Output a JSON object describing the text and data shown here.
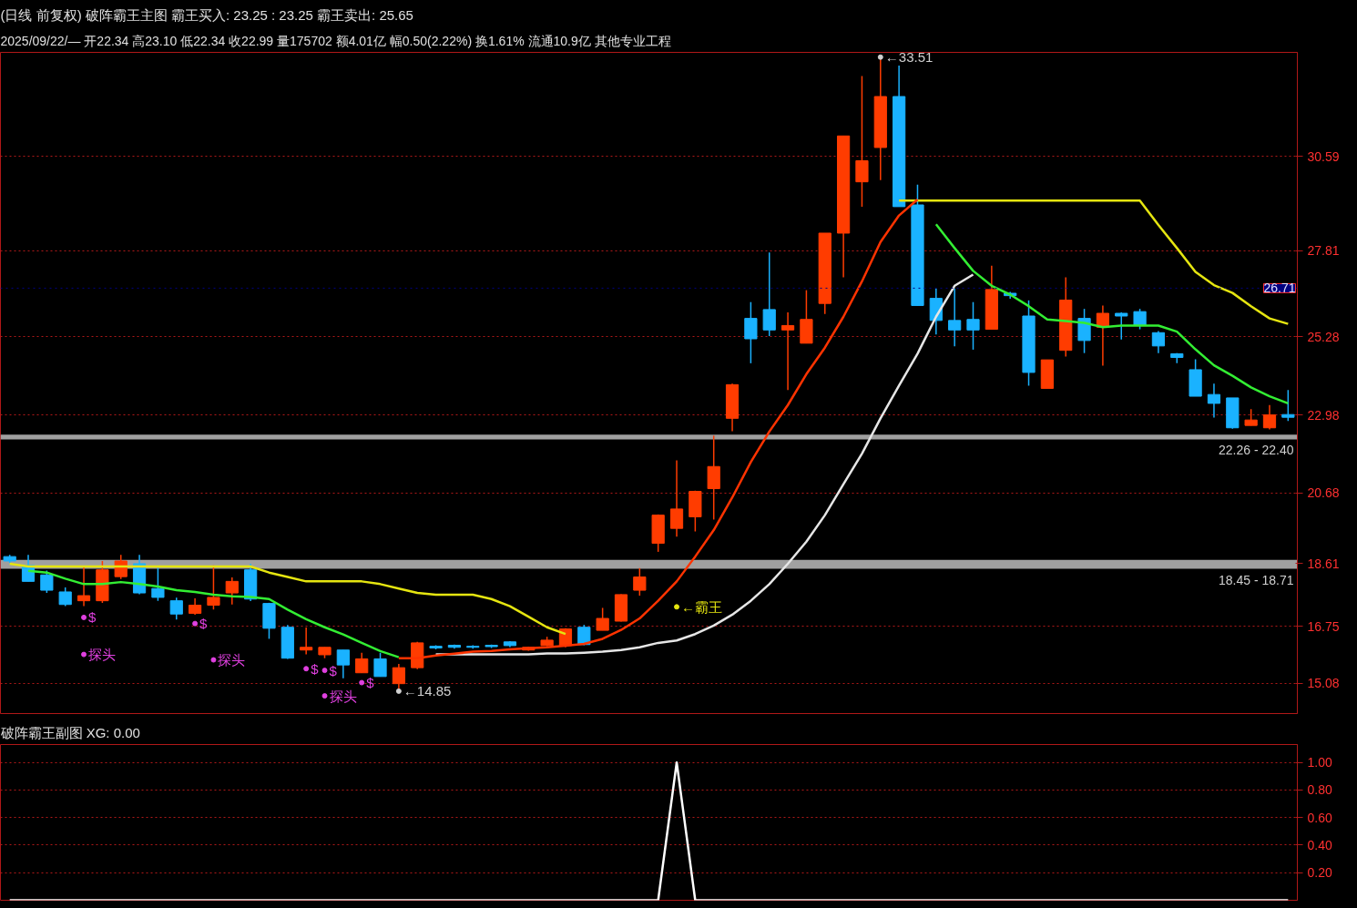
{
  "chart_data": [
    {
      "type": "candlestick",
      "title": "(日线 前复权)",
      "subtitle": "破阵霸王主图  霸王买入: 23.25 : 23.25  霸王卖出: 25.65",
      "categories": [
        null,
        null,
        null,
        null,
        null,
        null,
        null,
        null,
        null,
        null,
        null,
        null,
        null,
        null,
        null,
        null,
        null,
        null,
        null,
        null,
        null,
        null,
        null,
        null,
        null,
        null,
        null,
        null,
        null,
        null,
        null,
        null,
        null,
        null,
        null,
        null,
        null,
        null,
        null,
        null,
        null,
        null,
        null,
        null,
        null,
        null,
        null,
        null,
        null,
        null,
        null,
        null,
        null,
        null,
        null,
        null,
        null,
        null,
        null,
        null,
        null,
        null,
        null,
        null,
        null,
        null,
        null,
        null,
        null,
        null
      ],
      "ohlc": [
        [
          18.81,
          18.86,
          18.62,
          18.68
        ],
        [
          18.55,
          18.86,
          18.08,
          18.08
        ],
        [
          18.27,
          18.4,
          17.74,
          17.82
        ],
        [
          17.77,
          17.9,
          17.35,
          17.4
        ],
        [
          17.51,
          18.53,
          17.35,
          17.66
        ],
        [
          17.51,
          18.68,
          17.45,
          18.42
        ],
        [
          18.22,
          18.86,
          18.15,
          18.68
        ],
        [
          18.6,
          18.86,
          17.7,
          17.74
        ],
        [
          17.87,
          18.47,
          17.51,
          17.61
        ],
        [
          17.51,
          17.6,
          16.96,
          17.12
        ],
        [
          17.14,
          17.58,
          17.1,
          17.38
        ],
        [
          17.38,
          18.55,
          17.25,
          17.61
        ],
        [
          17.74,
          18.2,
          17.4,
          18.08
        ],
        [
          18.42,
          18.6,
          17.5,
          17.56
        ],
        [
          17.43,
          17.45,
          16.39,
          16.7
        ],
        [
          16.73,
          16.8,
          15.8,
          15.82
        ],
        [
          16.06,
          16.72,
          15.93,
          16.14
        ],
        [
          15.92,
          16.14,
          15.82,
          16.14
        ],
        [
          16.06,
          16.06,
          15.23,
          15.62
        ],
        [
          15.39,
          15.98,
          15.39,
          15.8
        ],
        [
          15.8,
          15.98,
          15.28,
          15.28
        ],
        [
          15.07,
          15.65,
          14.85,
          15.54
        ],
        [
          15.54,
          16.3,
          15.5,
          16.27
        ],
        [
          16.17,
          16.2,
          16.08,
          16.12
        ],
        [
          16.2,
          16.22,
          16.1,
          16.14
        ],
        [
          16.17,
          16.2,
          16.1,
          16.14
        ],
        [
          16.2,
          16.22,
          16.12,
          16.16
        ],
        [
          16.3,
          16.32,
          16.15,
          16.19
        ],
        [
          16.06,
          16.16,
          16.04,
          16.14
        ],
        [
          16.19,
          16.45,
          16.17,
          16.35
        ],
        [
          16.19,
          16.7,
          16.14,
          16.68
        ],
        [
          16.73,
          16.8,
          16.2,
          16.22
        ],
        [
          16.64,
          17.3,
          16.64,
          16.99
        ],
        [
          16.91,
          17.7,
          16.9,
          17.69
        ],
        [
          17.82,
          18.47,
          17.66,
          18.21
        ],
        [
          19.2,
          20.05,
          18.95,
          20.03
        ],
        [
          19.64,
          21.64,
          19.4,
          20.21
        ],
        [
          19.98,
          20.75,
          19.55,
          20.73
        ],
        [
          20.81,
          22.37,
          19.9,
          21.46
        ],
        [
          22.88,
          23.9,
          22.5,
          23.87
        ],
        [
          25.82,
          26.3,
          24.5,
          25.22
        ],
        [
          26.08,
          27.76,
          25.3,
          25.48
        ],
        [
          25.48,
          26.0,
          23.71,
          25.61
        ],
        [
          25.09,
          26.65,
          25.09,
          25.79
        ],
        [
          26.26,
          28.33,
          25.95,
          28.33
        ],
        [
          28.33,
          31.19,
          27.03,
          31.19
        ],
        [
          29.84,
          32.95,
          29.11,
          30.46
        ],
        [
          30.85,
          33.51,
          29.89,
          32.35
        ],
        [
          32.35,
          33.26,
          29.11,
          29.11
        ],
        [
          29.16,
          29.76,
          26.2,
          26.2
        ],
        [
          26.41,
          26.7,
          25.35,
          25.76
        ],
        [
          25.76,
          26.7,
          25.0,
          25.48
        ],
        [
          25.79,
          26.3,
          24.9,
          25.48
        ],
        [
          25.5,
          27.37,
          25.5,
          26.67
        ],
        [
          26.56,
          26.6,
          26.4,
          26.49
        ],
        [
          25.89,
          26.35,
          23.84,
          24.23
        ],
        [
          23.76,
          24.6,
          23.76,
          24.6
        ],
        [
          24.88,
          27.03,
          24.7,
          26.36
        ],
        [
          25.82,
          26.1,
          24.8,
          25.17
        ],
        [
          25.56,
          26.2,
          24.43,
          25.97
        ],
        [
          25.97,
          26.0,
          25.2,
          25.89
        ],
        [
          26.02,
          26.1,
          25.5,
          25.61
        ],
        [
          25.4,
          25.45,
          24.8,
          25.01
        ],
        [
          24.78,
          24.8,
          24.5,
          24.67
        ],
        [
          24.31,
          24.62,
          23.53,
          23.53
        ],
        [
          23.58,
          23.9,
          22.9,
          23.32
        ],
        [
          23.48,
          23.48,
          22.57,
          22.6
        ],
        [
          22.67,
          23.15,
          22.67,
          22.83
        ],
        [
          22.6,
          23.27,
          22.55,
          22.98
        ],
        [
          22.99,
          23.71,
          22.8,
          22.91
        ]
      ],
      "colors": [
        "#1ab2ff",
        "#1ab2ff",
        "#1ab2ff",
        "#1ab2ff",
        "#ff3c00",
        "#ff3c00",
        "#ff3c00",
        "#1ab2ff",
        "#1ab2ff",
        "#1ab2ff",
        "#ff3c00",
        "#ff3c00",
        "#ff3c00",
        "#1ab2ff",
        "#1ab2ff",
        "#1ab2ff",
        "#ff3c00",
        "#ff3c00",
        "#1ab2ff",
        "#ff3c00",
        "#1ab2ff",
        "#ff3c00",
        "#ff3c00",
        "#1ab2ff",
        "#1ab2ff",
        "#1ab2ff",
        "#1ab2ff",
        "#1ab2ff",
        "#ff3c00",
        "#ff3c00",
        "#ff3c00",
        "#1ab2ff",
        "#ff3c00",
        "#ff3c00",
        "#ff3c00",
        "#ff3c00",
        "#ff3c00",
        "#ff3c00",
        "#ff3c00",
        "#ff3c00",
        "#1ab2ff",
        "#1ab2ff",
        "#ff3c00",
        "#ff3c00",
        "#ff3c00",
        "#ff3c00",
        "#ff3c00",
        "#ff3c00",
        "#1ab2ff",
        "#1ab2ff",
        "#1ab2ff",
        "#1ab2ff",
        "#1ab2ff",
        "#ff3c00",
        "#1ab2ff",
        "#1ab2ff",
        "#ff3c00",
        "#ff3c00",
        "#1ab2ff",
        "#ff3c00",
        "#1ab2ff",
        "#1ab2ff",
        "#1ab2ff",
        "#1ab2ff",
        "#1ab2ff",
        "#1ab2ff",
        "#1ab2ff",
        "#ff3c00",
        "#ff3c00",
        "#1ab2ff"
      ],
      "series": [
        {
          "type": "line",
          "color": "#e5e510",
          "values": [
            18.6,
            18.52,
            18.52,
            18.52,
            18.52,
            18.52,
            18.52,
            18.52,
            18.52,
            18.52,
            18.52,
            18.52,
            18.52,
            18.52,
            18.34,
            18.21,
            18.08,
            18.08,
            18.08,
            18.08,
            18.0,
            17.87,
            17.74,
            17.69,
            17.69,
            17.69,
            17.56,
            17.35,
            17.04,
            16.73,
            16.53,
            null,
            null,
            null,
            null,
            null,
            null,
            null,
            null,
            null,
            null,
            null,
            null,
            null,
            null,
            null,
            null,
            null,
            29.29,
            29.29,
            29.29,
            29.29,
            29.29,
            29.29,
            29.29,
            29.29,
            29.29,
            29.29,
            29.29,
            29.29,
            29.29,
            29.29,
            28.57,
            27.89,
            27.19,
            26.8,
            26.57,
            26.18,
            25.82,
            25.66
          ]
        },
        {
          "type": "line",
          "color": "#e6e6e6",
          "values": [
            null,
            null,
            null,
            null,
            null,
            null,
            null,
            null,
            null,
            null,
            null,
            null,
            null,
            null,
            null,
            null,
            null,
            null,
            null,
            null,
            null,
            null,
            null,
            15.93,
            15.93,
            15.93,
            15.93,
            15.93,
            15.93,
            15.96,
            15.96,
            15.98,
            16.01,
            16.06,
            16.14,
            16.27,
            16.34,
            16.53,
            16.78,
            17.1,
            17.51,
            18.0,
            18.6,
            19.25,
            20.03,
            20.94,
            21.84,
            22.88,
            23.84,
            24.78,
            25.87,
            26.78,
            27.11,
            null,
            null,
            null,
            null,
            null,
            null,
            null,
            null,
            null,
            null,
            null,
            null,
            null,
            null,
            null,
            null,
            null
          ]
        },
        {
          "type": "line",
          "color": "#33ee33",
          "values": [
            null,
            18.39,
            18.34,
            18.16,
            18.0,
            18.0,
            18.06,
            18.0,
            17.93,
            17.82,
            17.77,
            17.69,
            17.64,
            17.62,
            17.56,
            17.25,
            16.97,
            16.73,
            16.52,
            16.27,
            16.03,
            15.85,
            null,
            null,
            null,
            null,
            null,
            null,
            null,
            null,
            null,
            null,
            null,
            null,
            null,
            null,
            null,
            null,
            null,
            null,
            null,
            null,
            null,
            null,
            null,
            null,
            null,
            null,
            null,
            null,
            28.59,
            27.89,
            27.22,
            26.78,
            26.52,
            26.18,
            25.79,
            25.74,
            25.69,
            25.56,
            25.61,
            25.61,
            25.61,
            25.43,
            24.91,
            24.44,
            24.13,
            23.79,
            23.53,
            23.32
          ]
        },
        {
          "type": "line",
          "color": "#ff3300",
          "values": [
            null,
            null,
            null,
            null,
            null,
            null,
            null,
            null,
            null,
            null,
            null,
            null,
            null,
            null,
            null,
            null,
            null,
            null,
            null,
            null,
            null,
            15.82,
            15.82,
            15.9,
            15.95,
            16.01,
            16.03,
            16.08,
            16.11,
            16.14,
            16.19,
            16.24,
            16.39,
            16.65,
            16.99,
            17.51,
            18.08,
            18.81,
            19.59,
            20.55,
            21.59,
            22.49,
            23.27,
            24.18,
            24.96,
            25.87,
            26.91,
            28.07,
            28.85,
            29.32,
            null,
            null,
            null,
            null,
            null,
            null,
            null,
            null,
            null,
            null,
            null,
            null,
            null,
            null,
            null,
            null,
            null,
            null,
            null,
            null
          ]
        },
        {
          "type": "scatter",
          "marker": "circle",
          "color": "#e040e0",
          "values": [
            null,
            null,
            null,
            null,
            17.02,
            null,
            null,
            null,
            null,
            null,
            16.84,
            null,
            null,
            null,
            null,
            null,
            15.51,
            15.46,
            null,
            15.1,
            null,
            null,
            null,
            null,
            null,
            null,
            null,
            null,
            null,
            null,
            null,
            null,
            null,
            null,
            null,
            null,
            null,
            null,
            null,
            null,
            null,
            null,
            null,
            null,
            null,
            null,
            null,
            null,
            null,
            null,
            null,
            null,
            null,
            null,
            null,
            null,
            null,
            null,
            null,
            null,
            null,
            null,
            null,
            null,
            null,
            null,
            null,
            null,
            null,
            null
          ],
          "value_labels": [
            null,
            null,
            null,
            null,
            "$",
            null,
            null,
            null,
            null,
            null,
            "$",
            null,
            null,
            null,
            null,
            null,
            "$",
            "$",
            null,
            "$",
            null,
            null,
            null,
            null,
            null,
            null,
            null,
            null,
            null,
            null,
            null,
            null,
            null,
            null,
            null,
            null,
            null,
            null,
            null,
            null,
            null,
            null,
            null,
            null,
            null,
            null,
            null,
            null,
            null,
            null,
            null,
            null,
            null,
            null,
            null,
            null,
            null,
            null,
            null,
            null,
            null,
            null,
            null,
            null,
            null,
            null,
            null,
            null,
            null,
            null
          ]
        },
        {
          "type": "scatter",
          "marker": "circle",
          "color": "#e040e0",
          "values": [
            null,
            null,
            null,
            null,
            15.93,
            null,
            null,
            null,
            null,
            null,
            null,
            15.77,
            null,
            null,
            null,
            null,
            null,
            14.71,
            null,
            null,
            null,
            null,
            null,
            null,
            null,
            null,
            null,
            null,
            null,
            null,
            null,
            null,
            null,
            null,
            null,
            null,
            null,
            null,
            null,
            null,
            null,
            null,
            null,
            null,
            null,
            null,
            null,
            null,
            null,
            null,
            null,
            null,
            null,
            null,
            null,
            null,
            null,
            null,
            null,
            null,
            null,
            null,
            null,
            null,
            null,
            null,
            null,
            null,
            null,
            null
          ],
          "value_labels": [
            null,
            null,
            null,
            null,
            "探头",
            null,
            null,
            null,
            null,
            null,
            null,
            "探头",
            null,
            null,
            null,
            null,
            null,
            "探头",
            null,
            null,
            null,
            null,
            null,
            null,
            null,
            null,
            null,
            null,
            null,
            null,
            null,
            null,
            null,
            null,
            null,
            null,
            null,
            null,
            null,
            null,
            null,
            null,
            null,
            null,
            null,
            null,
            null,
            null,
            null,
            null,
            null,
            null,
            null,
            null,
            null,
            null,
            null,
            null,
            null,
            null,
            null,
            null,
            null,
            null,
            null,
            null,
            null,
            null,
            null,
            null
          ]
        },
        {
          "type": "scatter",
          "marker": "circle",
          "color": "#d0d0d0",
          "values": [
            null,
            null,
            null,
            null,
            null,
            null,
            null,
            null,
            null,
            null,
            null,
            null,
            null,
            null,
            null,
            null,
            null,
            null,
            null,
            null,
            null,
            14.85,
            null,
            null,
            null,
            null,
            null,
            null,
            null,
            null,
            null,
            null,
            null,
            null,
            null,
            null,
            null,
            null,
            null,
            null,
            null,
            null,
            null,
            null,
            null,
            null,
            null,
            33.51,
            null,
            null,
            null,
            null,
            null,
            null,
            null,
            null,
            null,
            null,
            null,
            null,
            null,
            null,
            null,
            null,
            null,
            null,
            null,
            null,
            null,
            null
          ],
          "value_labels": [
            null,
            null,
            null,
            null,
            null,
            null,
            null,
            null,
            null,
            null,
            null,
            null,
            null,
            null,
            null,
            null,
            null,
            null,
            null,
            null,
            null,
            "←14.85",
            null,
            null,
            null,
            null,
            null,
            null,
            null,
            null,
            null,
            null,
            null,
            null,
            null,
            null,
            null,
            null,
            null,
            null,
            null,
            null,
            null,
            null,
            null,
            null,
            null,
            "←33.51",
            null,
            null,
            null,
            null,
            null,
            null,
            null,
            null,
            null,
            null,
            null,
            null,
            null,
            null,
            null,
            null,
            null,
            null,
            null,
            null,
            null,
            null
          ]
        },
        {
          "type": "scatter",
          "marker": "circle",
          "color": "#e5e510",
          "values": [
            null,
            null,
            null,
            null,
            null,
            null,
            null,
            null,
            null,
            null,
            null,
            null,
            null,
            null,
            null,
            null,
            null,
            null,
            null,
            null,
            null,
            null,
            null,
            null,
            null,
            null,
            null,
            null,
            null,
            null,
            null,
            null,
            null,
            null,
            null,
            null,
            17.33,
            null,
            null,
            null,
            null,
            null,
            null,
            null,
            null,
            null,
            null,
            null,
            null,
            null,
            null,
            null,
            null,
            null,
            null,
            null,
            null,
            null,
            null,
            null,
            null,
            null,
            null,
            null,
            null,
            null,
            null,
            null,
            null,
            null
          ],
          "value_labels": [
            null,
            null,
            null,
            null,
            null,
            null,
            null,
            null,
            null,
            null,
            null,
            null,
            null,
            null,
            null,
            null,
            null,
            null,
            null,
            null,
            null,
            null,
            null,
            null,
            null,
            null,
            null,
            null,
            null,
            null,
            null,
            null,
            null,
            null,
            null,
            null,
            "←霸王",
            null,
            null,
            null,
            null,
            null,
            null,
            null,
            null,
            null,
            null,
            null,
            null,
            null,
            null,
            null,
            null,
            null,
            null,
            null,
            null,
            null,
            null,
            null,
            null,
            null,
            null,
            null,
            null,
            null,
            null,
            null,
            null,
            null
          ]
        }
      ],
      "annotations": [
        "2025/09/22/—  开22.34  高23.10  低22.34  收22.99  量175702  额4.01亿  幅0.50(2.22%)  换1.61%  流通10.9亿  其他专业工程"
      ],
      "bands": [
        {
          "axis": "y",
          "from": 22.26,
          "to": 22.4,
          "label": "22.26 - 22.40",
          "color": "#a0a0a0"
        },
        {
          "axis": "y",
          "from": 18.45,
          "to": 18.71,
          "label": "18.45 - 18.71",
          "color": "#a0a0a0"
        }
      ],
      "ref_lines": [
        {
          "axis": "y",
          "value": 26.71,
          "label": "26.71",
          "color": "#000080",
          "line_style": "dotted"
        }
      ],
      "ylim": [
        14.19,
        33.65
      ],
      "yticks": [
        15.08,
        16.75,
        18.61,
        20.68,
        22.98,
        25.28,
        27.81,
        30.59
      ],
      "tick_labels": "y",
      "grid": "y"
    },
    {
      "type": "line",
      "title": "破阵霸王副图  XG: 0.00",
      "categories": [
        null,
        null,
        null,
        null,
        null,
        null,
        null,
        null,
        null,
        null,
        null,
        null,
        null,
        null,
        null,
        null,
        null,
        null,
        null,
        null,
        null,
        null,
        null,
        null,
        null,
        null,
        null,
        null,
        null,
        null,
        null,
        null,
        null,
        null,
        null,
        null,
        null,
        null,
        null,
        null,
        null,
        null,
        null,
        null,
        null,
        null,
        null,
        null,
        null,
        null,
        null,
        null,
        null,
        null,
        null,
        null,
        null,
        null,
        null,
        null,
        null,
        null,
        null,
        null,
        null,
        null,
        null,
        null,
        null,
        null
      ],
      "series": [
        {
          "color": "#ffffff",
          "values": [
            0,
            0,
            0,
            0,
            0,
            0,
            0,
            0,
            0,
            0,
            0,
            0,
            0,
            0,
            0,
            0,
            0,
            0,
            0,
            0,
            0,
            0,
            0,
            0,
            0,
            0,
            0,
            0,
            0,
            0,
            0,
            0,
            0,
            0,
            0,
            0,
            1,
            0,
            0,
            0,
            0,
            0,
            0,
            0,
            0,
            0,
            0,
            0,
            0,
            0,
            0,
            0,
            0,
            0,
            0,
            0,
            0,
            0,
            0,
            0,
            0,
            0,
            0,
            0,
            0,
            0,
            0,
            0,
            0,
            0
          ]
        }
      ],
      "ylim": [
        0,
        1.13
      ],
      "yticks": [
        {
          "value": 0.2,
          "label": "0.20"
        },
        {
          "value": 0.4,
          "label": "0.40"
        },
        {
          "value": 0.6,
          "label": "0.60"
        },
        {
          "value": 0.8,
          "label": "0.80"
        },
        {
          "value": 1.0,
          "label": "1.00"
        }
      ],
      "tick_labels": "y",
      "grid": "y"
    }
  ]
}
